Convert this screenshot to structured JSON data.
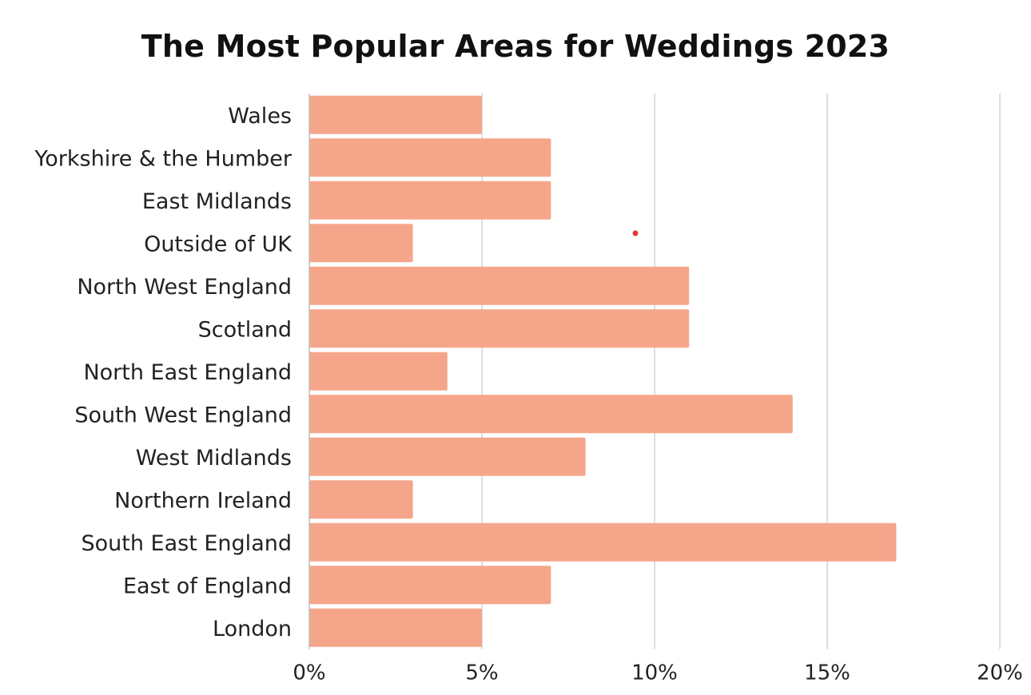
{
  "chart_data": {
    "type": "bar",
    "orientation": "horizontal",
    "title": "The Most Popular Areas for Weddings 2023",
    "xlabel": "",
    "ylabel": "",
    "categories": [
      "Wales",
      "Yorkshire & the Humber",
      "East Midlands",
      "Outside of UK",
      "North West England",
      "Scotland",
      "North East England",
      "South West England",
      "West Midlands",
      "Northern Ireland",
      "South East England",
      "East of England",
      "London"
    ],
    "values": [
      5,
      7,
      7,
      3,
      11,
      11,
      4,
      14,
      8,
      3,
      17,
      7,
      5
    ],
    "xlim": [
      0,
      20
    ],
    "xticks": [
      0,
      5,
      10,
      15,
      20
    ],
    "tick_suffix": "%",
    "grid": "vertical",
    "legend": "none",
    "colors": {
      "bar": "#F5A68A",
      "grid": "#D3D3D3",
      "axis": "#BDBDBD",
      "text": "#222222",
      "marker": "#E53935"
    }
  }
}
